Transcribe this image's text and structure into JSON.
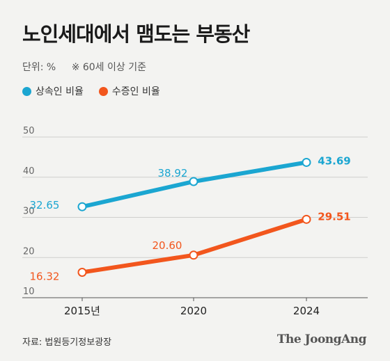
{
  "header": {
    "title": "노인세대에서 맴도는 부동산",
    "unit": "단위: %",
    "note": "※ 60세 이상 기준"
  },
  "colors": {
    "inheritance": "#1ba6d1",
    "gift": "#f2561d"
  },
  "footer": {
    "source": "자료: 법원등기정보광장",
    "brand": "The JoongAng"
  },
  "chart_data": {
    "type": "line",
    "title": "노인세대에서 맴도는 부동산",
    "x": [
      "2015년",
      "2020",
      "2024"
    ],
    "ylim": [
      10,
      50
    ],
    "yticks": [
      10,
      20,
      30,
      40,
      50
    ],
    "grid": true,
    "legend_position": "top-left",
    "series": [
      {
        "name": "상속인 비율",
        "values": [
          32.65,
          38.92,
          43.69
        ],
        "labels": [
          "32.65",
          "38.92",
          "43.69"
        ]
      },
      {
        "name": "수증인 비율",
        "values": [
          16.32,
          20.6,
          29.51
        ],
        "labels": [
          "16.32",
          "20.60",
          "29.51"
        ]
      }
    ]
  }
}
